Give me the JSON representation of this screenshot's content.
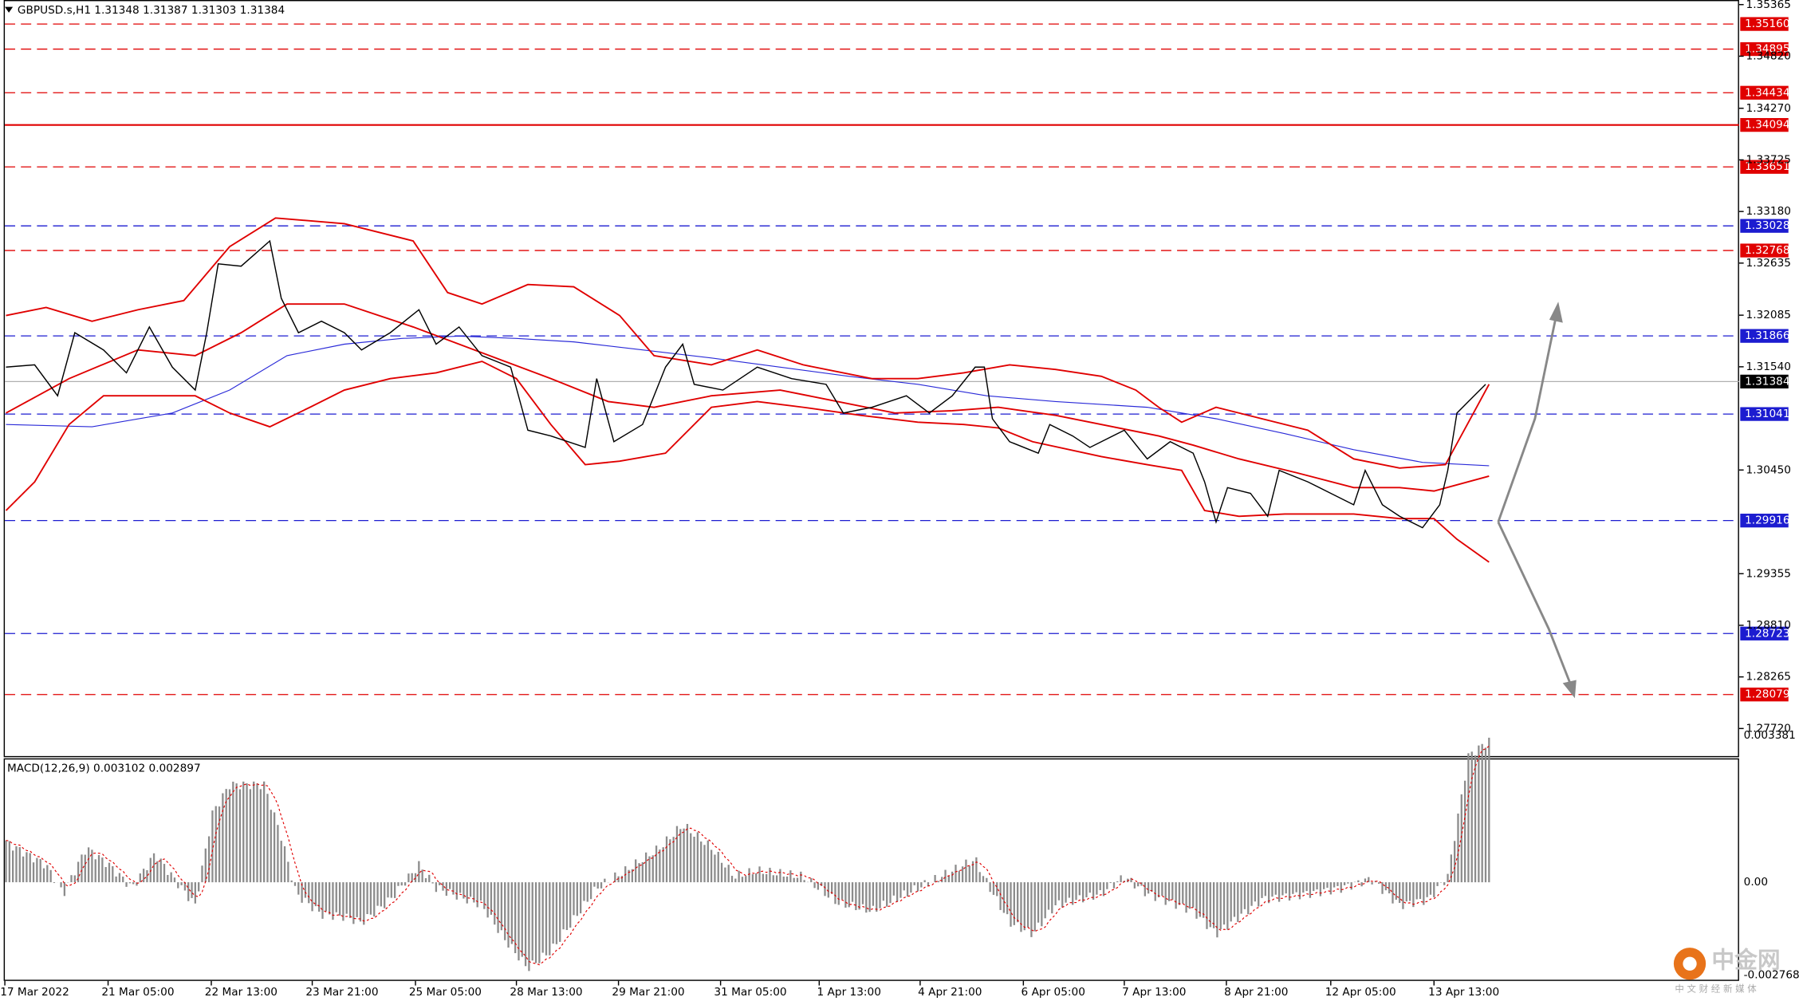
{
  "header": {
    "symbol": "GBPUSD.s,H1",
    "ohlc": "1.31348 1.31387 1.31303 1.31384"
  },
  "price_axis": [
    "1.35365",
    "1.34820",
    "1.34270",
    "1.33725",
    "1.33180",
    "1.32635",
    "1.32085",
    "1.31540",
    "1.30450",
    "1.29355",
    "1.28810",
    "1.28265",
    "1.27720"
  ],
  "levels": [
    {
      "label": "1.35160",
      "color": "red",
      "style": "dashed"
    },
    {
      "label": "1.34895",
      "color": "red",
      "style": "dashed"
    },
    {
      "label": "1.34434",
      "color": "red",
      "style": "dashed"
    },
    {
      "label": "1.34094",
      "color": "red",
      "style": "solid"
    },
    {
      "label": "1.33651",
      "color": "red",
      "style": "dashed"
    },
    {
      "label": "1.33028",
      "color": "blue",
      "style": "dashed"
    },
    {
      "label": "1.32768",
      "color": "red",
      "style": "dashed"
    },
    {
      "label": "1.31866",
      "color": "blue",
      "style": "dashed"
    },
    {
      "label": "1.31041",
      "color": "blue",
      "style": "dashed"
    },
    {
      "label": "1.29916",
      "color": "blue",
      "style": "dashed"
    },
    {
      "label": "1.28723",
      "color": "blue",
      "style": "dashed"
    },
    {
      "label": "1.28079",
      "color": "red",
      "style": "dashed"
    }
  ],
  "current_price": "1.31384",
  "macd": {
    "title": "MACD(12,26,9) 0.003102 0.002897",
    "axis": [
      "0.003381",
      "0.00",
      "-0.002768"
    ]
  },
  "dates": [
    "17 Mar 2022",
    "21 Mar 05:00",
    "22 Mar 13:00",
    "23 Mar 21:00",
    "25 Mar 05:00",
    "28 Mar 13:00",
    "29 Mar 21:00",
    "31 Mar 05:00",
    "1 Apr 13:00",
    "4 Apr 21:00",
    "6 Apr 05:00",
    "7 Apr 13:00",
    "8 Apr 21:00",
    "12 Apr 05:00",
    "13 Apr 13:00"
  ],
  "logo": {
    "name": "中金网",
    "tagline": "中 文 财 经 新 媒 体"
  }
}
